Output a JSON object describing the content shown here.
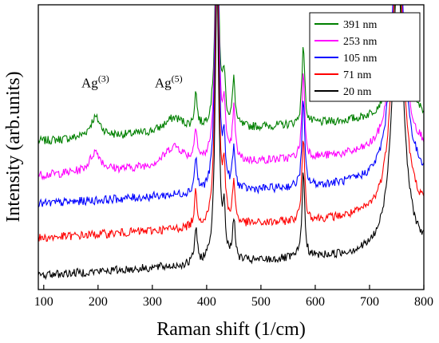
{
  "chart_data": {
    "type": "line",
    "title": "",
    "xlabel": "Raman shift (1/cm)",
    "ylabel": "Intensity (arb.units)",
    "xlim": [
      90,
      800
    ],
    "ylim": [
      0,
      1
    ],
    "x_ticks": [
      100,
      200,
      300,
      400,
      500,
      600,
      700,
      800
    ],
    "y_ticks_shown": false,
    "grid": false,
    "legend_position": "top-right",
    "annotations": [
      {
        "text": "Ag",
        "superscript": "(3)",
        "x": 195,
        "y": 0.71
      },
      {
        "text": "Ag",
        "superscript": "(5)",
        "x": 330,
        "y": 0.71
      }
    ],
    "series": [
      {
        "name": "391 nm",
        "color": "#008000",
        "baseline": 0.52,
        "peaks": [
          [
            195,
            0.07,
            12
          ],
          [
            340,
            0.05,
            22
          ],
          [
            380,
            0.12,
            3
          ],
          [
            419,
            0.8,
            4
          ],
          [
            432,
            0.16,
            3
          ],
          [
            450,
            0.16,
            3
          ],
          [
            578,
            0.28,
            3
          ],
          [
            752,
            0.5,
            12
          ]
        ]
      },
      {
        "name": "253 nm",
        "color": "#ff00ff",
        "baseline": 0.4,
        "peaks": [
          [
            195,
            0.07,
            12
          ],
          [
            340,
            0.07,
            22
          ],
          [
            380,
            0.12,
            3
          ],
          [
            419,
            0.9,
            4
          ],
          [
            432,
            0.18,
            3
          ],
          [
            450,
            0.18,
            3
          ],
          [
            578,
            0.3,
            3
          ],
          [
            752,
            0.8,
            12
          ]
        ]
      },
      {
        "name": "105 nm",
        "color": "#0000ff",
        "baseline": 0.3,
        "peaks": [
          [
            380,
            0.12,
            3
          ],
          [
            419,
            1.0,
            4
          ],
          [
            432,
            0.14,
            3
          ],
          [
            450,
            0.14,
            3
          ],
          [
            578,
            0.3,
            3
          ],
          [
            752,
            1.0,
            12
          ]
        ]
      },
      {
        "name": "71 nm",
        "color": "#ff0000",
        "baseline": 0.18,
        "peaks": [
          [
            380,
            0.12,
            3
          ],
          [
            419,
            1.0,
            4
          ],
          [
            432,
            0.16,
            3
          ],
          [
            450,
            0.14,
            3
          ],
          [
            578,
            0.3,
            3
          ],
          [
            752,
            1.0,
            12
          ]
        ]
      },
      {
        "name": "20 nm",
        "color": "#000000",
        "baseline": 0.05,
        "peaks": [
          [
            380,
            0.12,
            3
          ],
          [
            419,
            1.0,
            4
          ],
          [
            432,
            0.14,
            3
          ],
          [
            450,
            0.14,
            3
          ],
          [
            578,
            0.3,
            3
          ],
          [
            752,
            1.0,
            12
          ]
        ]
      }
    ]
  }
}
